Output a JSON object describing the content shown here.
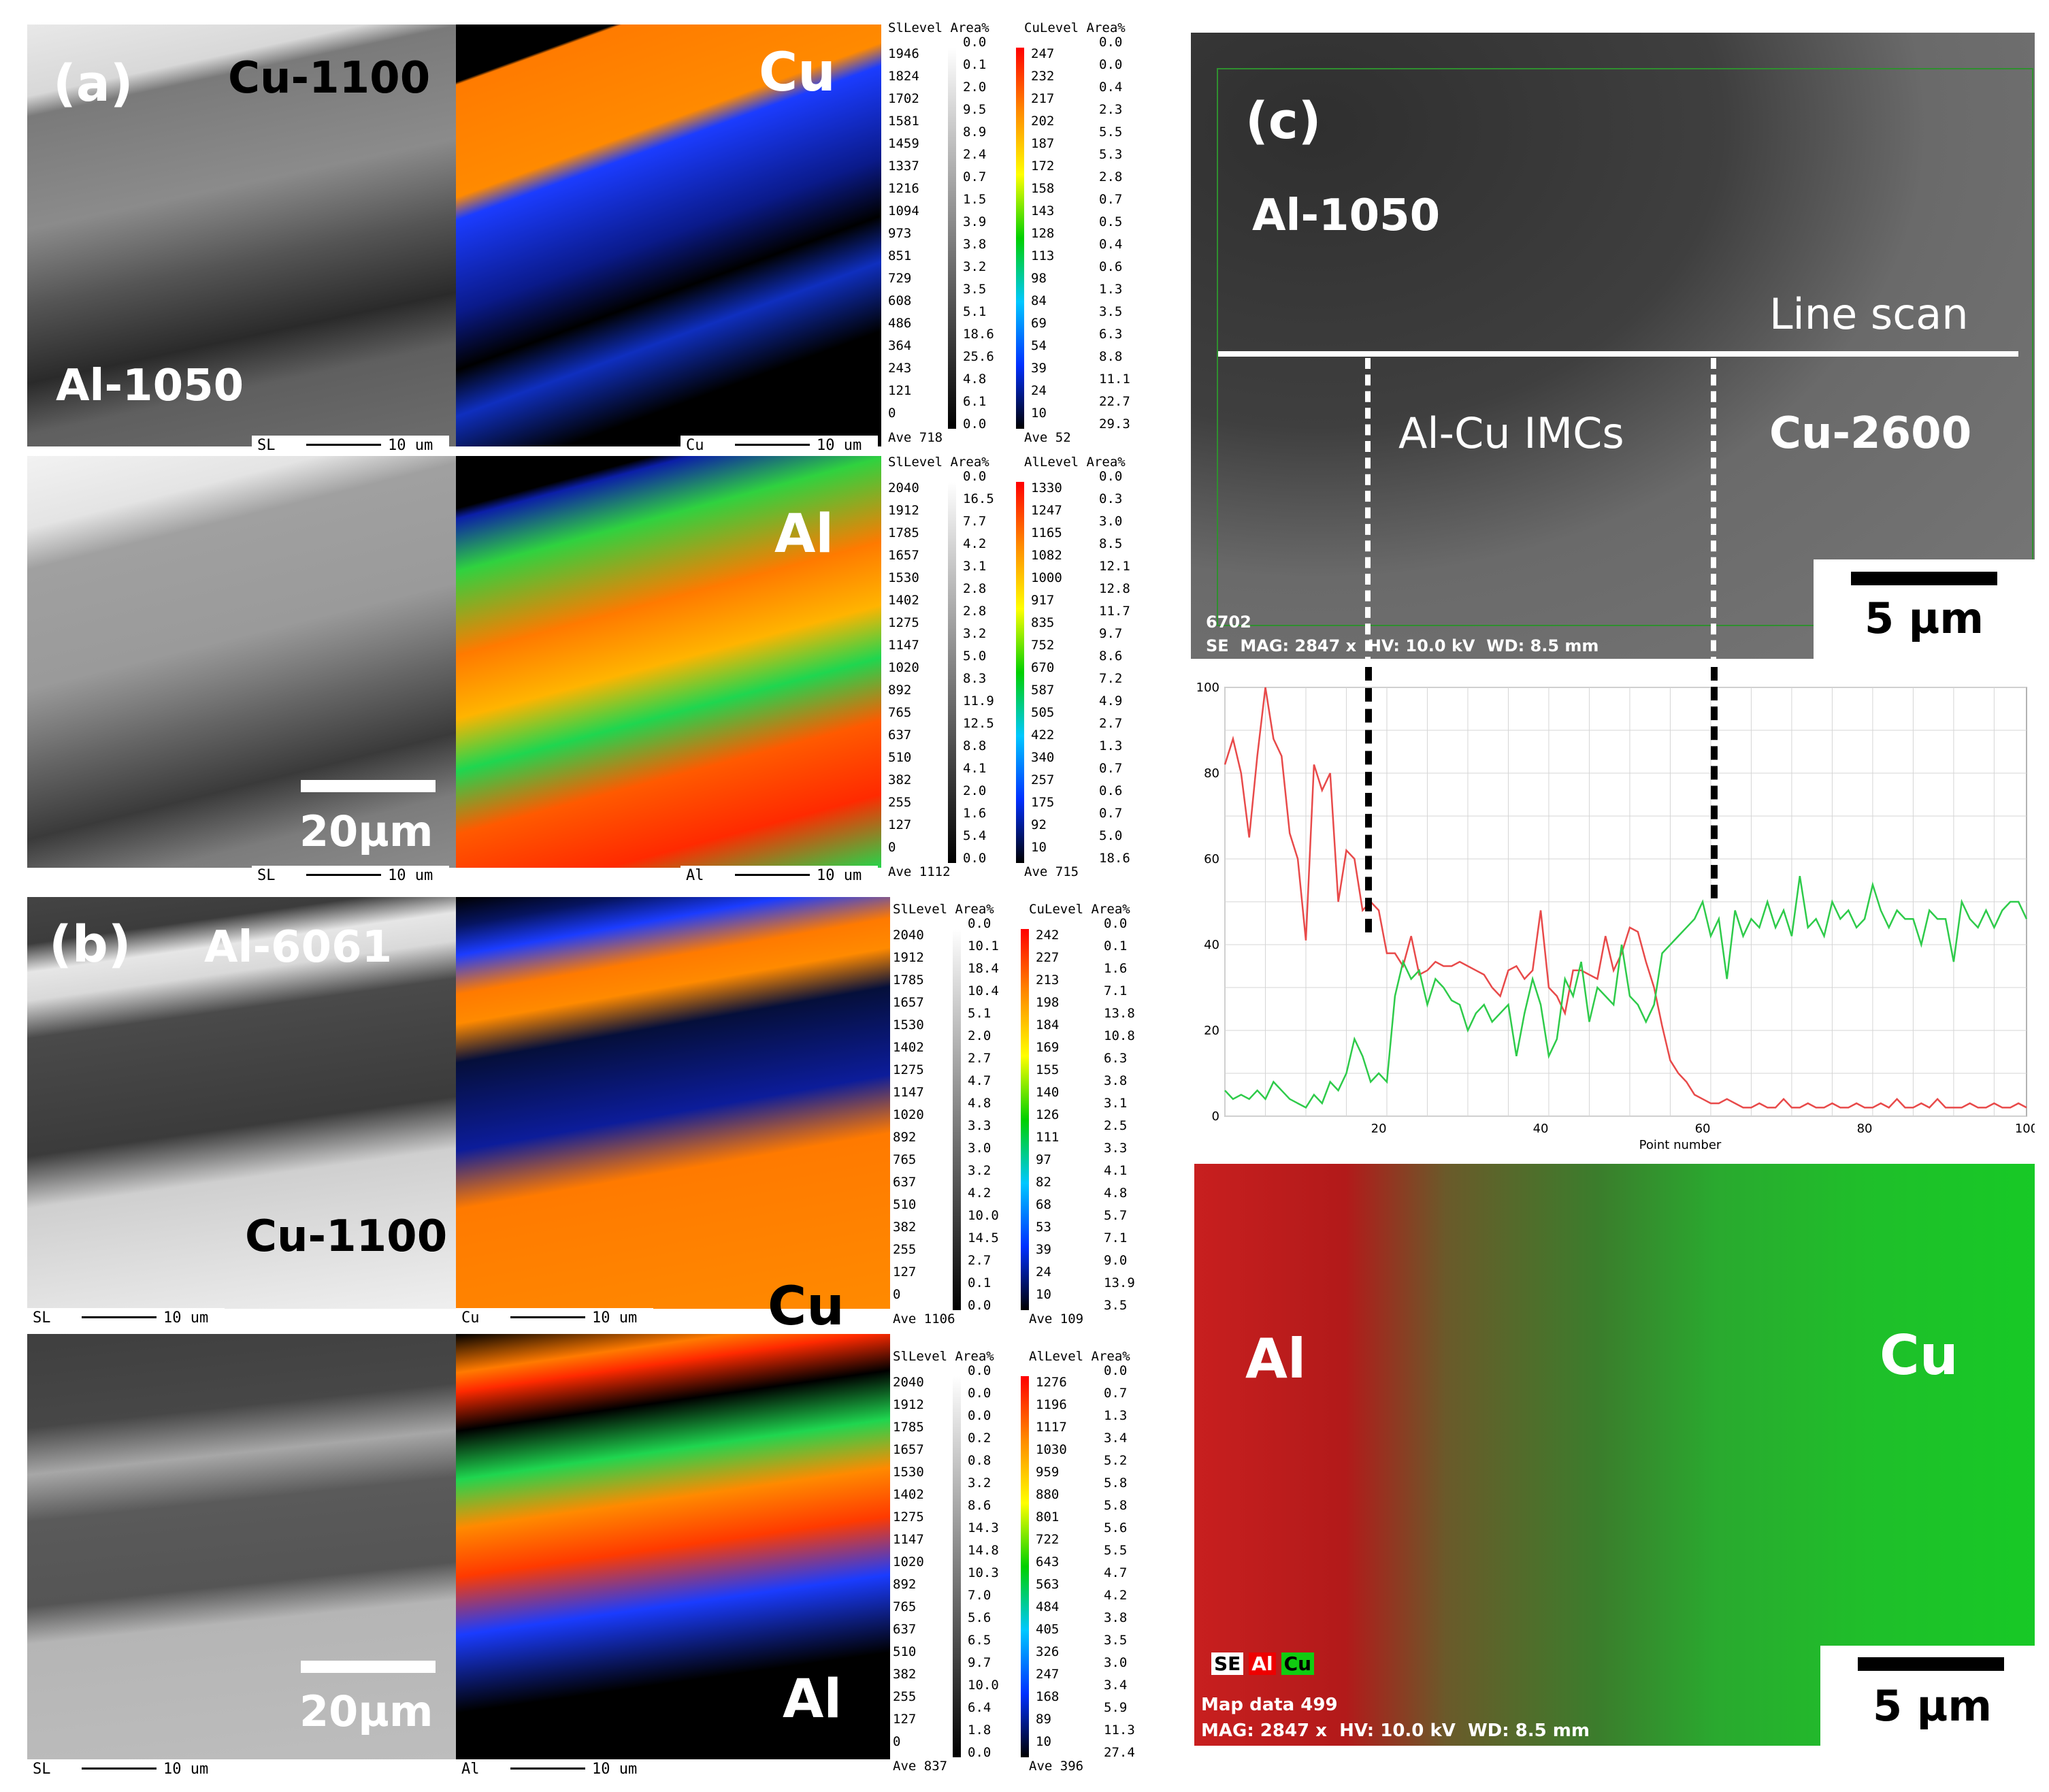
{
  "panels": {
    "a": {
      "tag": "(a)",
      "top": "Cu-1100",
      "bottom": "Al-1050",
      "scale": "20µm",
      "map_top": "Cu",
      "map_bottom": "Al",
      "strips": [
        [
          "SL",
          "10 um"
        ],
        [
          "Cu",
          "10 um"
        ],
        [
          "SL",
          "10 um"
        ],
        [
          "Al",
          "10 um"
        ]
      ]
    },
    "b": {
      "tag": "(b)",
      "top": "Al-6061",
      "bottom": "Cu-1100",
      "scale": "20µm",
      "map_top": "Cu",
      "map_bottom": "Al",
      "strips": [
        [
          "SL",
          "10 um"
        ],
        [
          "Cu",
          "10 um"
        ],
        [
          "SL",
          "10 um"
        ],
        [
          "Al",
          "10 um"
        ]
      ]
    },
    "c": {
      "tag": "(c)",
      "al": "Al-1050",
      "cu": "Cu-2600",
      "imc": "Al-Cu IMCs",
      "line": "Line scan",
      "scale": "5 µm",
      "sem_id": "6702",
      "sem_meta": "SE  MAG: 2847 x  HV: 10.0 kV  WD: 8.5 mm",
      "map_al": "Al",
      "map_cu": "Cu",
      "map_scale": "5 µm",
      "map_tags": [
        "SE",
        "Al",
        "Cu"
      ],
      "map_id": "Map data 499",
      "map_meta": "MAG: 2847 x  HV: 10.0 kV  WD: 8.5 mm"
    }
  },
  "legends": {
    "a_cu": {
      "hdr1": "SlLevel Area%",
      "hdr2": "CuLevel Area%",
      "l1": [
        "1946",
        "1824",
        "1702",
        "1581",
        "1459",
        "1337",
        "1216",
        "1094",
        "973",
        "851",
        "729",
        "608",
        "486",
        "364",
        "243",
        "121",
        "0"
      ],
      "a1": [
        "0.0",
        "0.1",
        "2.0",
        "9.5",
        "8.9",
        "2.4",
        "0.7",
        "1.5",
        "3.9",
        "3.8",
        "3.2",
        "3.5",
        "5.1",
        "18.6",
        "25.6",
        "4.8",
        "6.1",
        "0.0"
      ],
      "l2": [
        "247",
        "232",
        "217",
        "202",
        "187",
        "172",
        "158",
        "143",
        "128",
        "113",
        "98",
        "84",
        "69",
        "54",
        "39",
        "24",
        "10"
      ],
      "a2": [
        "0.0",
        "0.0",
        "0.4",
        "2.3",
        "5.5",
        "5.3",
        "2.8",
        "0.7",
        "0.5",
        "0.4",
        "0.6",
        "1.3",
        "3.5",
        "6.3",
        "8.8",
        "11.1",
        "22.7",
        "29.3"
      ],
      "ave1": "Ave 718",
      "ave2": "Ave 52"
    },
    "a_al": {
      "hdr1": "SlLevel Area%",
      "hdr2": "AlLevel Area%",
      "l1": [
        "2040",
        "1912",
        "1785",
        "1657",
        "1530",
        "1402",
        "1275",
        "1147",
        "1020",
        "892",
        "765",
        "637",
        "510",
        "382",
        "255",
        "127",
        "0"
      ],
      "a1": [
        "0.0",
        "16.5",
        "7.7",
        "4.2",
        "3.1",
        "2.8",
        "2.8",
        "3.2",
        "5.0",
        "8.3",
        "11.9",
        "12.5",
        "8.8",
        "4.1",
        "2.0",
        "1.6",
        "5.4",
        "0.0"
      ],
      "l2": [
        "1330",
        "1247",
        "1165",
        "1082",
        "1000",
        "917",
        "835",
        "752",
        "670",
        "587",
        "505",
        "422",
        "340",
        "257",
        "175",
        "92",
        "10"
      ],
      "a2": [
        "0.0",
        "0.3",
        "3.0",
        "8.5",
        "12.1",
        "12.8",
        "11.7",
        "9.7",
        "8.6",
        "7.2",
        "4.9",
        "2.7",
        "1.3",
        "0.7",
        "0.6",
        "0.7",
        "5.0",
        "18.6"
      ],
      "ave1": "Ave 1112",
      "ave2": "Ave 715"
    },
    "b_cu": {
      "hdr1": "SlLevel Area%",
      "hdr2": "CuLevel Area%",
      "l1": [
        "2040",
        "1912",
        "1785",
        "1657",
        "1530",
        "1402",
        "1275",
        "1147",
        "1020",
        "892",
        "765",
        "637",
        "510",
        "382",
        "255",
        "127",
        "0"
      ],
      "a1": [
        "0.0",
        "10.1",
        "18.4",
        "10.4",
        "5.1",
        "2.0",
        "2.7",
        "4.7",
        "4.8",
        "3.3",
        "3.0",
        "3.2",
        "4.2",
        "10.0",
        "14.5",
        "2.7",
        "0.1",
        "0.0"
      ],
      "l2": [
        "242",
        "227",
        "213",
        "198",
        "184",
        "169",
        "155",
        "140",
        "126",
        "111",
        "97",
        "82",
        "68",
        "53",
        "39",
        "24",
        "10"
      ],
      "a2": [
        "0.0",
        "0.1",
        "1.6",
        "7.1",
        "13.8",
        "10.8",
        "6.3",
        "3.8",
        "3.1",
        "2.5",
        "3.3",
        "4.1",
        "4.8",
        "5.7",
        "7.1",
        "9.0",
        "13.9",
        "3.5"
      ],
      "ave1": "Ave 1106",
      "ave2": "Ave 109"
    },
    "b_al": {
      "hdr1": "SlLevel Area%",
      "hdr2": "AlLevel Area%",
      "l1": [
        "2040",
        "1912",
        "1785",
        "1657",
        "1530",
        "1402",
        "1275",
        "1147",
        "1020",
        "892",
        "765",
        "637",
        "510",
        "382",
        "255",
        "127",
        "0"
      ],
      "a1": [
        "0.0",
        "0.0",
        "0.0",
        "0.2",
        "0.8",
        "3.2",
        "8.6",
        "14.3",
        "14.8",
        "10.3",
        "7.0",
        "5.6",
        "6.5",
        "9.7",
        "10.0",
        "6.4",
        "1.8",
        "0.0"
      ],
      "l2": [
        "1276",
        "1196",
        "1117",
        "1030",
        "959",
        "880",
        "801",
        "722",
        "643",
        "563",
        "484",
        "405",
        "326",
        "247",
        "168",
        "89",
        "10"
      ],
      "a2": [
        "0.0",
        "0.7",
        "1.3",
        "3.4",
        "5.2",
        "5.8",
        "5.8",
        "5.6",
        "5.5",
        "4.7",
        "4.2",
        "3.8",
        "3.5",
        "3.0",
        "3.4",
        "5.9",
        "11.3",
        "27.4"
      ],
      "ave1": "Ave 837",
      "ave2": "Ave 396"
    }
  },
  "chart_data": {
    "type": "line",
    "xlabel": "Point number",
    "xlim": [
      1,
      100
    ],
    "ylim": [
      0,
      100
    ],
    "xticks": [
      "20",
      "40",
      "60",
      "80",
      "100"
    ],
    "yticks": [
      "0",
      "20",
      "40",
      "60",
      "80",
      "100"
    ],
    "series": [
      {
        "color": "#e84a4a",
        "x": [
          1,
          2,
          3,
          4,
          5,
          6,
          7,
          8,
          9,
          10,
          11,
          12,
          13,
          14,
          15,
          16,
          17,
          18,
          19,
          20,
          21,
          22,
          23,
          24,
          25,
          26,
          27,
          28,
          29,
          30,
          31,
          32,
          33,
          34,
          35,
          36,
          37,
          38,
          39,
          40,
          41,
          42,
          43,
          44,
          45,
          46,
          47,
          48,
          49,
          50,
          51,
          52,
          53,
          54,
          55,
          56,
          57,
          58,
          59,
          60,
          61,
          62,
          63,
          64,
          65,
          66,
          67,
          68,
          69,
          70,
          71,
          72,
          73,
          74,
          75,
          76,
          77,
          78,
          79,
          80,
          81,
          82,
          83,
          84,
          85,
          86,
          87,
          88,
          89,
          90,
          91,
          92,
          93,
          94,
          95,
          96,
          97,
          98,
          99,
          100
        ],
        "y": [
          82,
          88,
          80,
          65,
          84,
          100,
          88,
          84,
          66,
          60,
          41,
          82,
          76,
          80,
          50,
          62,
          60,
          48,
          50,
          48,
          38,
          38,
          35,
          42,
          33,
          34,
          36,
          35,
          35,
          36,
          35,
          34,
          33,
          30,
          28,
          34,
          35,
          32,
          34,
          48,
          30,
          28,
          24,
          34,
          34,
          33,
          32,
          42,
          34,
          38,
          44,
          43,
          36,
          30,
          21,
          13,
          10,
          8,
          5,
          4,
          3,
          3,
          4,
          3,
          2,
          2,
          3,
          2,
          2,
          4,
          2,
          2,
          3,
          2,
          2,
          3,
          2,
          2,
          3,
          2,
          2,
          3,
          2,
          4,
          2,
          2,
          3,
          2,
          4,
          2,
          2,
          2,
          3,
          2,
          2,
          3,
          2,
          2,
          3,
          2
        ]
      },
      {
        "color": "#2ecb4a",
        "x": [
          1,
          2,
          3,
          4,
          5,
          6,
          7,
          8,
          9,
          10,
          11,
          12,
          13,
          14,
          15,
          16,
          17,
          18,
          19,
          20,
          21,
          22,
          23,
          24,
          25,
          26,
          27,
          28,
          29,
          30,
          31,
          32,
          33,
          34,
          35,
          36,
          37,
          38,
          39,
          40,
          41,
          42,
          43,
          44,
          45,
          46,
          47,
          48,
          49,
          50,
          51,
          52,
          53,
          54,
          55,
          56,
          57,
          58,
          59,
          60,
          61,
          62,
          63,
          64,
          65,
          66,
          67,
          68,
          69,
          70,
          71,
          72,
          73,
          74,
          75,
          76,
          77,
          78,
          79,
          80,
          81,
          82,
          83,
          84,
          85,
          86,
          87,
          88,
          89,
          90,
          91,
          92,
          93,
          94,
          95,
          96,
          97,
          98,
          99,
          100
        ],
        "y": [
          6,
          4,
          5,
          4,
          6,
          4,
          8,
          6,
          4,
          3,
          2,
          5,
          3,
          8,
          6,
          10,
          18,
          14,
          8,
          10,
          8,
          28,
          36,
          32,
          34,
          26,
          32,
          30,
          27,
          26,
          20,
          24,
          26,
          22,
          24,
          26,
          14,
          24,
          32,
          26,
          14,
          18,
          32,
          28,
          36,
          22,
          30,
          28,
          26,
          40,
          28,
          26,
          22,
          26,
          38,
          40,
          42,
          44,
          46,
          50,
          42,
          46,
          32,
          48,
          42,
          46,
          44,
          50,
          44,
          48,
          42,
          56,
          44,
          46,
          42,
          50,
          46,
          48,
          44,
          46,
          54,
          48,
          44,
          48,
          46,
          46,
          40,
          48,
          46,
          46,
          36,
          50,
          46,
          44,
          48,
          44,
          48,
          50,
          50,
          46
        ]
      }
    ]
  }
}
